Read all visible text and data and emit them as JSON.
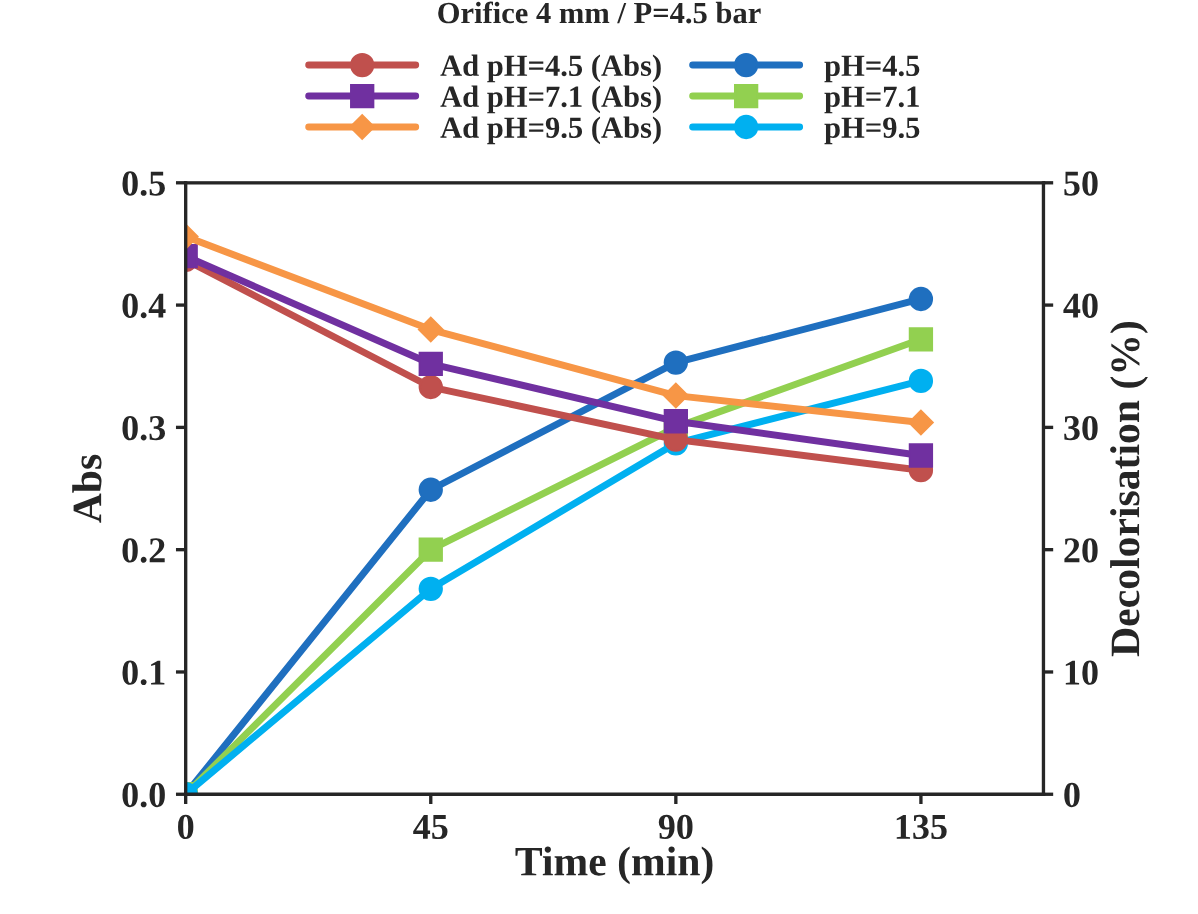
{
  "chart_data": {
    "type": "line",
    "title": "Orifice 4 mm / P=4.5 bar",
    "xlabel": "Time (min)",
    "ylabel": "Abs",
    "y2label": "Decolorisation (%)",
    "x": [
      0,
      45,
      90,
      135
    ],
    "xlim": [
      0,
      157.5
    ],
    "xticks": [
      0,
      45,
      90,
      135
    ],
    "ylim": [
      0,
      0.5
    ],
    "yticks": [
      {
        "value": 0,
        "label": "0.0"
      },
      0.1,
      0.2,
      0.3,
      0.4,
      0.5
    ],
    "y2lim": [
      0,
      50
    ],
    "y2ticks": [
      0,
      10,
      20,
      30,
      40,
      50
    ],
    "grid": false,
    "legend": "top",
    "series": [
      {
        "name": "Ad pH=4.5 (Abs)",
        "color": "#c0504d",
        "marker": "circle",
        "values": [
          0.437,
          0.333,
          0.29,
          0.265
        ]
      },
      {
        "name": "Ad pH=7.1 (Abs)",
        "color": "#7030a0",
        "marker": "square",
        "values": [
          0.44,
          0.352,
          0.305,
          0.277
        ]
      },
      {
        "name": "Ad pH=9.5 (Abs)",
        "color": "#f79646",
        "marker": "diamond",
        "values": [
          0.456,
          0.38,
          0.326,
          0.304
        ]
      },
      {
        "name": "pH=4.5",
        "color": "#1f6fbf",
        "marker": "circle",
        "axis": "y2",
        "values": [
          0,
          24.9,
          35.3,
          40.5
        ]
      },
      {
        "name": "pH=7.1",
        "color": "#92d050",
        "marker": "square",
        "axis": "y2",
        "values": [
          0,
          20,
          30,
          37.2
        ]
      },
      {
        "name": "pH=9.5",
        "color": "#00b0f0",
        "marker": "circle",
        "axis": "y2",
        "values": [
          0,
          16.8,
          28.7,
          33.8
        ]
      }
    ]
  }
}
